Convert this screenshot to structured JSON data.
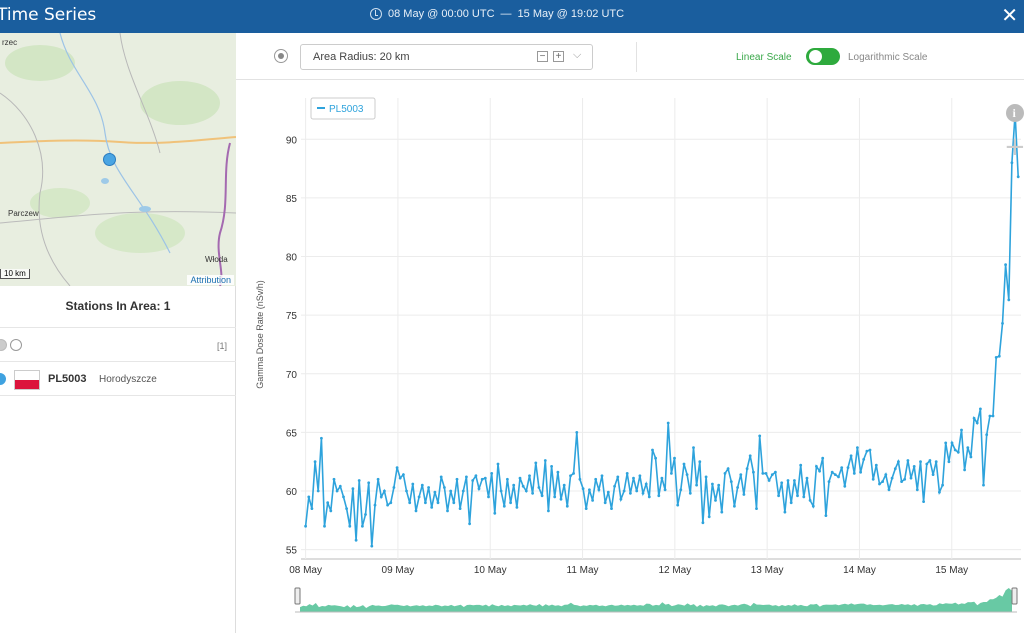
{
  "header": {
    "title": "Time Series",
    "range_start": "08 May @ 00:00 UTC",
    "range_sep": "—",
    "range_end": "15 May @ 19:02 UTC"
  },
  "map": {
    "labels": [
      "rzec",
      "Parczew",
      "Włoda"
    ],
    "scale_label": "10 km",
    "attribution": "Attribution"
  },
  "stations": {
    "title": "Stations In Area: 1",
    "count": "[1]",
    "items": [
      {
        "code": "PL5003",
        "name": "Horodyszcze",
        "country": "Poland"
      }
    ]
  },
  "toolbar": {
    "radius_label": "Area Radius: 20 km",
    "linear": "Linear Scale",
    "logarithmic": "Logarithmic Scale",
    "linear_active": true
  },
  "colors": {
    "line": "#2ea3dc",
    "navigator": "#4dbf94",
    "active": "#2eaa3d",
    "header": "#1a5e9e"
  },
  "chart_data": {
    "type": "line",
    "ylabel": "Gamma Dose Rate (nSv/h)",
    "ylim": [
      54.2,
      92.5
    ],
    "yticks": [
      55,
      60,
      65,
      70,
      75,
      80,
      85,
      90
    ],
    "xticks": [
      "08 May",
      "09 May",
      "10 May",
      "11 May",
      "12 May",
      "13 May",
      "14 May",
      "15 May"
    ],
    "xlim_days": [
      -0.05,
      7.75
    ],
    "legend": "PL5003",
    "series": [
      {
        "name": "PL5003",
        "values": [
          57,
          59.5,
          58.5,
          62.5,
          60,
          64.5,
          57,
          59,
          58.3,
          61,
          60,
          60.4,
          59.5,
          58.5,
          57,
          60.2,
          55.8,
          60.9,
          57,
          58,
          60.7,
          55.3,
          58.8,
          61,
          59.5,
          60,
          58.8,
          59,
          60.3,
          62,
          61.1,
          61.4,
          60,
          59,
          60.6,
          58.3,
          59.5,
          60.5,
          59,
          60.3,
          58.6,
          59.9,
          59,
          61.2,
          60.3,
          58.3,
          60,
          59,
          61,
          58.5,
          60,
          61.2,
          57.2,
          60.9,
          61.3,
          60.2,
          61,
          61.1,
          59.5,
          61.5,
          58.1,
          62.3,
          60,
          58.7,
          61,
          59,
          60.5,
          58.6,
          61.1,
          60.4,
          60,
          61.3,
          59.8,
          62.4,
          60.3,
          59.6,
          62.6,
          58.3,
          62.1,
          59.5,
          61.6,
          59.3,
          60.5,
          58.7,
          61.3,
          61.5,
          65,
          61,
          60.2,
          58.5,
          60.1,
          59.2,
          61,
          60.1,
          61.3,
          59,
          59.9,
          58.5,
          60.4,
          61.2,
          59.3,
          60,
          61.5,
          59.8,
          61.1,
          60,
          61.3,
          59.8,
          60.6,
          59.5,
          63.5,
          62.8,
          59.6,
          61.1,
          60.1,
          65.8,
          61.5,
          62.8,
          58.8,
          60.1,
          62.3,
          61.4,
          59.8,
          63.7,
          60.5,
          62.5,
          57.3,
          61.2,
          57.8,
          60.6,
          59.2,
          60.5,
          58.2,
          61.5,
          61.9,
          60.8,
          58.7,
          60.3,
          61.4,
          59.7,
          61.9,
          63,
          61.6,
          58.5,
          64.7,
          61.5,
          61.5,
          60.9,
          61.4,
          61.6,
          59.6,
          60.7,
          58.2,
          60.9,
          59,
          60.9,
          59.6,
          62.2,
          59.5,
          61.1,
          59.2,
          58.7,
          62.1,
          61.7,
          62.8,
          57.9,
          60.8,
          61.6,
          61.4,
          61.2,
          62,
          60.4,
          62,
          63,
          61.5,
          63.7,
          61.6,
          62.7,
          63.4,
          63.5,
          61,
          62.2,
          60.6,
          60.8,
          61.4,
          60.1,
          61.1,
          61.9,
          62.5,
          60.8,
          61,
          62.6,
          61.1,
          62.1,
          60.1,
          62.5,
          59.1,
          62.3,
          62.6,
          61.4,
          62.5,
          59.9,
          60.5,
          64.1,
          62.5,
          64.1,
          63.5,
          63.3,
          65.2,
          61.8,
          63.7,
          62.9,
          66.2,
          65.8,
          67,
          60.5,
          64.8,
          66.4,
          66.4,
          71.4,
          71.5,
          74.3,
          79.3,
          76.3,
          88,
          92.2,
          86.8
        ]
      }
    ],
    "navigator": {
      "type": "area"
    }
  }
}
